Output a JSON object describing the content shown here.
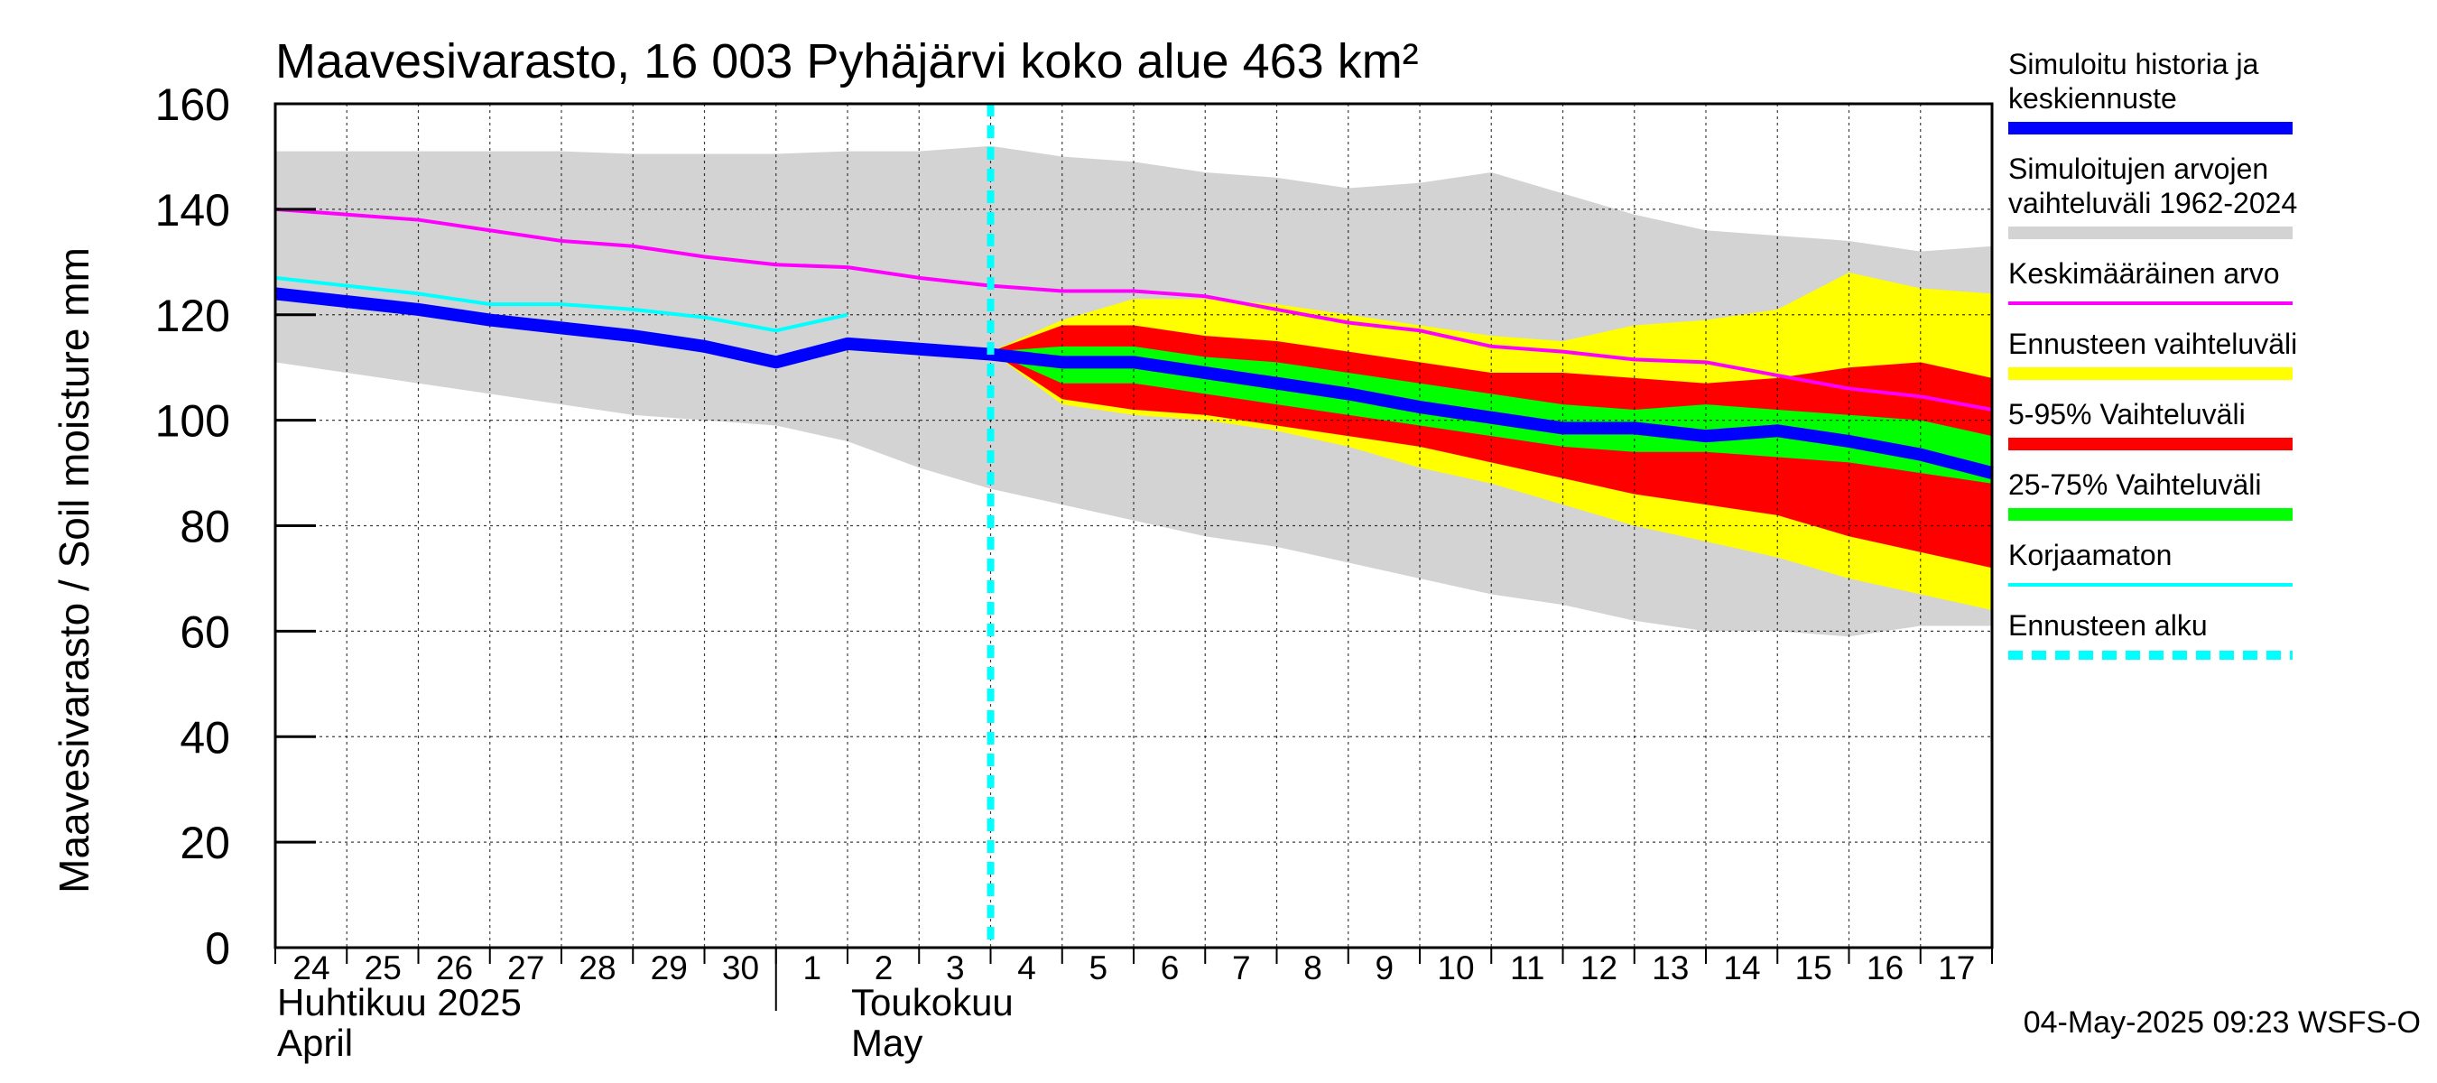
{
  "chart_data": {
    "type": "area",
    "title": "Maavesivarasto, 16 003 Pyhäjärvi koko alue 463 km²",
    "ylabel": "Maavesivarasto / Soil moisture   mm",
    "xlabel": "",
    "ylim": [
      0,
      160
    ],
    "yticks": [
      "0",
      "20",
      "40",
      "60",
      "80",
      "100",
      "120",
      "140",
      "160"
    ],
    "grid": true,
    "x_day_labels": [
      "24",
      "25",
      "26",
      "27",
      "28",
      "29",
      "30",
      "1",
      "2",
      "3",
      "4",
      "5",
      "6",
      "7",
      "8",
      "9",
      "10",
      "11",
      "12",
      "13",
      "14",
      "15",
      "16",
      "17"
    ],
    "month_labels": [
      {
        "line1": "Huhtikuu  2025",
        "line2": "April"
      },
      {
        "line1": "Toukokuu",
        "line2": "May"
      }
    ],
    "forecast_start_day": 10,
    "series": [
      {
        "name": "Simuloitujen arvojen vaihteluväli 1962-2024",
        "kind": "band",
        "color": "#d3d3d3",
        "x": [
          0,
          1,
          2,
          3,
          4,
          5,
          6,
          7,
          8,
          9,
          10,
          11,
          12,
          13,
          14,
          15,
          16,
          17,
          18,
          19,
          20,
          21,
          22,
          23,
          24
        ],
        "upper": [
          151,
          151,
          151,
          151,
          151,
          150.5,
          150.5,
          150.5,
          151,
          151,
          152,
          150,
          149,
          147,
          146,
          144,
          145,
          147,
          143,
          139,
          136,
          135,
          134,
          132,
          133
        ],
        "lower": [
          111,
          109,
          107,
          105,
          103,
          101,
          100,
          99,
          96,
          91,
          87,
          84,
          81,
          78,
          76,
          73,
          70,
          67,
          65,
          62,
          60,
          60,
          59,
          61,
          61
        ]
      },
      {
        "name": "Ennusteen vaihteluväli",
        "kind": "band",
        "color": "#ffff00",
        "x": [
          10,
          11,
          12,
          13,
          14,
          15,
          16,
          17,
          18,
          19,
          20,
          21,
          22,
          23,
          24
        ],
        "upper": [
          113,
          119,
          123,
          123,
          122,
          120,
          118,
          116,
          115,
          118,
          119,
          121,
          128,
          125,
          124
        ],
        "lower": [
          113,
          103,
          101,
          100,
          98,
          95,
          91,
          88,
          84,
          80,
          77,
          74,
          70,
          67,
          64
        ]
      },
      {
        "name": "5-95% Vaihteluväli",
        "kind": "band",
        "color": "#ff0000",
        "x": [
          10,
          11,
          12,
          13,
          14,
          15,
          16,
          17,
          18,
          19,
          20,
          21,
          22,
          23,
          24
        ],
        "upper": [
          113,
          118,
          118,
          116,
          115,
          113,
          111,
          109,
          109,
          108,
          107,
          108,
          110,
          111,
          108
        ],
        "lower": [
          113,
          104,
          102,
          101,
          99,
          97,
          95,
          92,
          89,
          86,
          84,
          82,
          78,
          75,
          72
        ]
      },
      {
        "name": "25-75% Vaihteluväli",
        "kind": "band",
        "color": "#00ff00",
        "x": [
          10,
          11,
          12,
          13,
          14,
          15,
          16,
          17,
          18,
          19,
          20,
          21,
          22,
          23,
          24
        ],
        "upper": [
          113,
          114,
          114,
          112,
          111,
          109,
          107,
          105,
          103,
          102,
          103,
          102,
          101,
          100,
          97
        ],
        "lower": [
          113,
          107,
          107,
          105,
          103,
          101,
          99,
          97,
          95,
          94,
          94,
          93,
          92,
          90,
          88
        ]
      },
      {
        "name": "Keskimääräinen arvo",
        "kind": "line",
        "color": "#ff00ff",
        "x": [
          0,
          1,
          2,
          3,
          4,
          5,
          6,
          7,
          8,
          9,
          10,
          11,
          12,
          13,
          14,
          15,
          16,
          17,
          18,
          19,
          20,
          21,
          22,
          23,
          24
        ],
        "y": [
          140,
          139,
          138,
          136,
          134,
          133,
          131,
          129.5,
          129,
          127,
          125.5,
          124.5,
          124.5,
          123.5,
          121,
          118.5,
          117,
          114,
          113,
          111.5,
          111,
          108.5,
          106,
          104.5,
          102
        ]
      },
      {
        "name": "Korjaamaton",
        "kind": "line",
        "color": "#00ffff",
        "x": [
          0,
          1,
          2,
          3,
          4,
          5,
          6,
          7,
          8
        ],
        "y": [
          127,
          125.5,
          124,
          122,
          122,
          121,
          119.5,
          117,
          120
        ]
      },
      {
        "name": "Simuloitu historia ja keskiennuste",
        "kind": "line",
        "color": "#0000ff",
        "x": [
          0,
          1,
          2,
          3,
          4,
          5,
          6,
          7,
          8,
          9,
          10,
          11,
          12,
          13,
          14,
          15,
          16,
          17,
          18,
          19,
          20,
          21,
          22,
          23,
          24
        ],
        "y": [
          124,
          122.5,
          121,
          119,
          117.5,
          116,
          114,
          111,
          114.5,
          113.5,
          112.5,
          111,
          111,
          109,
          107,
          105,
          102.5,
          100.5,
          98.5,
          98.5,
          97,
          98,
          96,
          93.5,
          90
        ]
      }
    ]
  },
  "legend": [
    {
      "label": "Simuloitu historia ja keskiennuste",
      "color": "#0000ff",
      "style": "thick"
    },
    {
      "label": "Simuloitujen arvojen vaihteluväli 1962-2024",
      "color": "#d3d3d3",
      "style": "thick"
    },
    {
      "label": "Keskimääräinen arvo",
      "color": "#ff00ff",
      "style": "thin"
    },
    {
      "label": "Ennusteen vaihteluväli",
      "color": "#ffff00",
      "style": "thick"
    },
    {
      "label": "5-95% Vaihteluväli",
      "color": "#ff0000",
      "style": "thick"
    },
    {
      "label": "25-75% Vaihteluväli",
      "color": "#00ff00",
      "style": "thick"
    },
    {
      "label": "Korjaamaton",
      "color": "#00ffff",
      "style": "thin"
    },
    {
      "label": "Ennusteen alku",
      "color": "#00ffff",
      "style": "dashed"
    }
  ],
  "timestamp": "04-May-2025 09:23 WSFS-O"
}
